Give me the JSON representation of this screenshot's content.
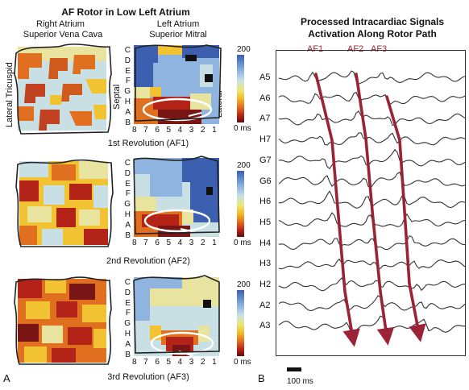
{
  "panel_a": {
    "title": "AF Rotor in Low Left Atrium",
    "right_atrium_label_line1": "Right Atrium",
    "right_atrium_label_line2": "Superior Vena Cava",
    "left_atrium_label_line1": "Left Atrium",
    "left_atrium_label_line2": "Superior Mitral",
    "lateral_tricuspid": "Lateral Tricuspid",
    "septal": "Septal",
    "lateral": "Lateral",
    "row_letters": [
      "C",
      "D",
      "E",
      "F",
      "G",
      "H",
      "A",
      "B"
    ],
    "column_numbers": [
      "8",
      "7",
      "6",
      "5",
      "4",
      "3",
      "2",
      "1"
    ],
    "colorbar_max": "200",
    "colorbar_min": "0 ms",
    "revolutions": [
      "1st Revolution (AF1)",
      "2nd Revolution (AF2)",
      "3rd Revolution (AF3)"
    ],
    "letter": "A"
  },
  "panel_b": {
    "title_line1": "Processed Intracardiac Signals",
    "title_line2": "Activation Along Rotor Path",
    "af_labels": [
      "AF1",
      "AF2",
      "AF3"
    ],
    "channels": [
      "A5",
      "A6",
      "A7",
      "H7",
      "G7",
      "G6",
      "H6",
      "H5",
      "H4",
      "H3",
      "H2",
      "A2",
      "A3"
    ],
    "scale_label": "100 ms",
    "letter": "B"
  },
  "colors": {
    "arrow": "#9b2335",
    "dark_red": "#7a1515",
    "red": "#b42318",
    "orange": "#e07020",
    "yellow": "#f1c232",
    "pale_yellow": "#e8e4a0",
    "light_cyan": "#c8e0e4",
    "light_blue": "#8fb4e0",
    "blue": "#3c5fb0",
    "black": "#111111"
  }
}
